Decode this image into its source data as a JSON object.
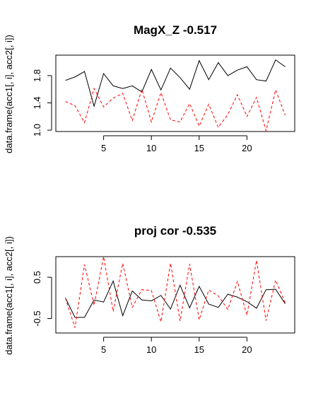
{
  "chart_data": [
    {
      "type": "line",
      "title": "MagX_Z -0.517",
      "xlabel": "",
      "ylabel": "data.frame(acc1[, i], acc2[, i])",
      "xlim": [
        0,
        25
      ],
      "ylim": [
        0.98,
        2.1
      ],
      "x_ticks": [
        5,
        10,
        15,
        20
      ],
      "y_ticks": [
        1.0,
        1.4,
        1.8
      ],
      "y_tick_labels": [
        "1.0",
        "1.4",
        "1.8"
      ],
      "grid": false,
      "x": [
        1,
        2,
        3,
        4,
        5,
        6,
        7,
        8,
        9,
        10,
        11,
        12,
        13,
        14,
        15,
        16,
        17,
        18,
        19,
        20,
        21,
        22,
        23,
        24
      ],
      "series": [
        {
          "color": "#000000",
          "dash": "solid",
          "values": [
            1.73,
            1.78,
            1.86,
            1.35,
            1.83,
            1.65,
            1.61,
            1.65,
            1.56,
            1.89,
            1.59,
            1.91,
            1.77,
            1.6,
            2.02,
            1.74,
            1.99,
            1.8,
            1.88,
            1.93,
            1.74,
            1.72,
            2.03,
            1.93
          ]
        },
        {
          "color": "#ff0000",
          "dash": "dashed",
          "values": [
            1.42,
            1.36,
            1.11,
            1.61,
            1.34,
            1.47,
            1.54,
            1.14,
            1.6,
            1.12,
            1.55,
            1.15,
            1.12,
            1.39,
            1.06,
            1.38,
            1.04,
            1.23,
            1.52,
            1.2,
            1.48,
            0.99,
            1.59,
            1.22
          ]
        }
      ]
    },
    {
      "type": "line",
      "title": "proj cor -0.535",
      "xlabel": "",
      "ylabel": "data.frame(acc1[, i], acc2[, i])",
      "xlim": [
        0,
        25
      ],
      "ylim": [
        -0.85,
        1.0
      ],
      "x_ticks": [
        5,
        10,
        15,
        20
      ],
      "y_ticks": [
        -0.5,
        0.5
      ],
      "y_tick_labels": [
        "-0.5",
        "0.5"
      ],
      "grid": false,
      "x": [
        1,
        2,
        3,
        4,
        5,
        6,
        7,
        8,
        9,
        10,
        11,
        12,
        13,
        14,
        15,
        16,
        17,
        18,
        19,
        20,
        21,
        22,
        23,
        24
      ],
      "series": [
        {
          "color": "#000000",
          "dash": "solid",
          "values": [
            0.0,
            -0.47,
            -0.47,
            -0.05,
            -0.1,
            0.41,
            -0.43,
            0.17,
            -0.05,
            -0.07,
            0.06,
            -0.27,
            0.31,
            -0.24,
            0.28,
            -0.15,
            -0.23,
            0.09,
            0.02,
            -0.09,
            -0.25,
            0.2,
            0.21,
            -0.14
          ]
        },
        {
          "color": "#ff0000",
          "dash": "dashed",
          "values": [
            0.0,
            -0.72,
            0.81,
            -0.18,
            1.0,
            -0.33,
            0.84,
            -0.23,
            0.2,
            0.18,
            -0.58,
            0.84,
            -0.56,
            0.82,
            -0.53,
            0.19,
            0.05,
            -0.28,
            0.4,
            -0.42,
            0.91,
            -0.55,
            0.43,
            -0.12
          ]
        }
      ]
    }
  ]
}
